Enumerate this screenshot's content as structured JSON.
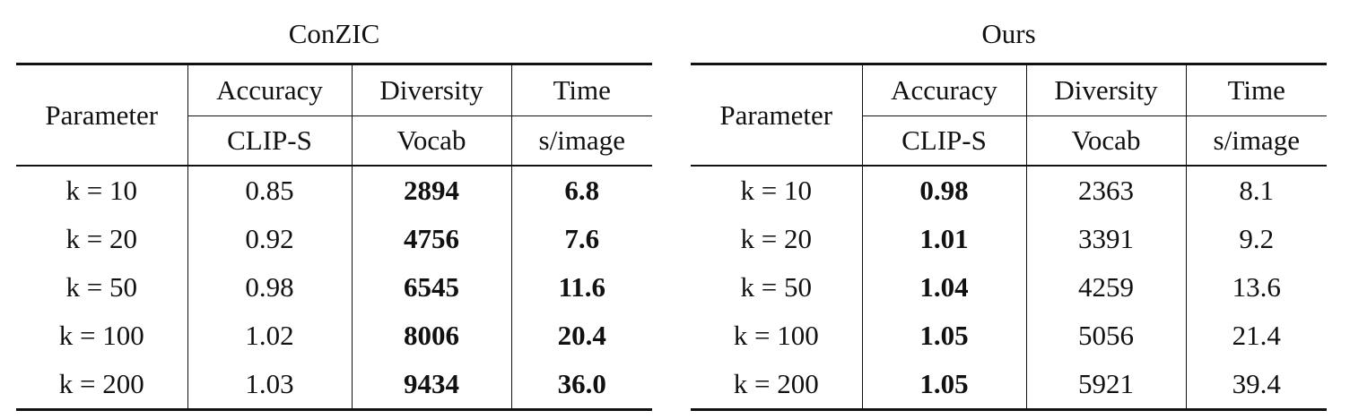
{
  "tables": [
    {
      "title": "ConZIC",
      "header": {
        "param": "Parameter",
        "groups": [
          "Accuracy",
          "Diversity",
          "Time"
        ],
        "metrics": [
          "CLIP-S",
          "Vocab",
          "s/image"
        ]
      },
      "bold_columns": [
        2,
        3
      ],
      "rows": [
        [
          "k = 10",
          "0.85",
          "2894",
          "6.8"
        ],
        [
          "k = 20",
          "0.92",
          "4756",
          "7.6"
        ],
        [
          "k = 50",
          "0.98",
          "6545",
          "11.6"
        ],
        [
          "k = 100",
          "1.02",
          "8006",
          "20.4"
        ],
        [
          "k = 200",
          "1.03",
          "9434",
          "36.0"
        ]
      ]
    },
    {
      "title": "Ours",
      "header": {
        "param": "Parameter",
        "groups": [
          "Accuracy",
          "Diversity",
          "Time"
        ],
        "metrics": [
          "CLIP-S",
          "Vocab",
          "s/image"
        ]
      },
      "bold_columns": [
        1
      ],
      "rows": [
        [
          "k = 10",
          "0.98",
          "2363",
          "8.1"
        ],
        [
          "k = 20",
          "1.01",
          "3391",
          "9.2"
        ],
        [
          "k = 50",
          "1.04",
          "4259",
          "13.6"
        ],
        [
          "k = 100",
          "1.05",
          "5056",
          "21.4"
        ],
        [
          "k = 200",
          "1.05",
          "5921",
          "39.4"
        ]
      ]
    }
  ]
}
